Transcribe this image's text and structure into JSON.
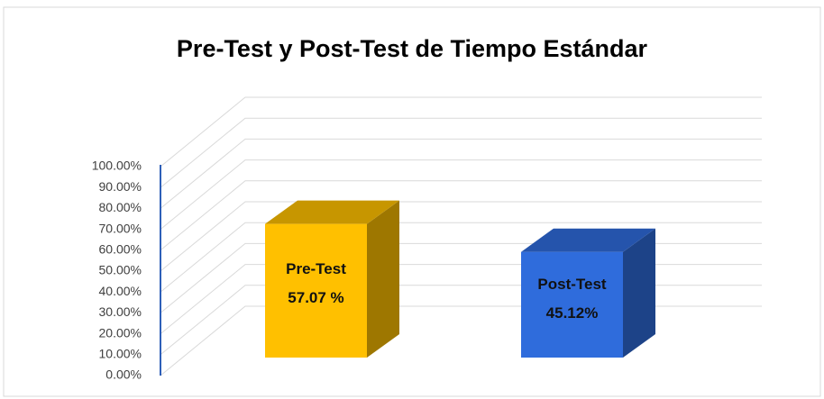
{
  "chart_data": {
    "type": "bar3d",
    "title": "Pre-Test y Post-Test de Tiempo Estándar",
    "categories": [
      "Pre-Test",
      "Post-Test"
    ],
    "values": [
      57.07,
      45.12
    ],
    "value_labels": [
      "57.07 %",
      "45.12%"
    ],
    "colors": [
      "#ffc000",
      "#2f6cdc"
    ],
    "ylim": [
      0,
      100
    ],
    "yticks": [
      {
        "value": 0,
        "label": "0.00%"
      },
      {
        "value": 10,
        "label": "10.00%"
      },
      {
        "value": 20,
        "label": "20.00%"
      },
      {
        "value": 30,
        "label": "30.00%"
      },
      {
        "value": 40,
        "label": "40.00%"
      },
      {
        "value": 50,
        "label": "50.00%"
      },
      {
        "value": 60,
        "label": "60.00%"
      },
      {
        "value": 70,
        "label": "70.00%"
      },
      {
        "value": 80,
        "label": "80.00%"
      },
      {
        "value": 90,
        "label": "90.00%"
      },
      {
        "value": 100,
        "label": "100.00%"
      }
    ],
    "grid": true
  }
}
